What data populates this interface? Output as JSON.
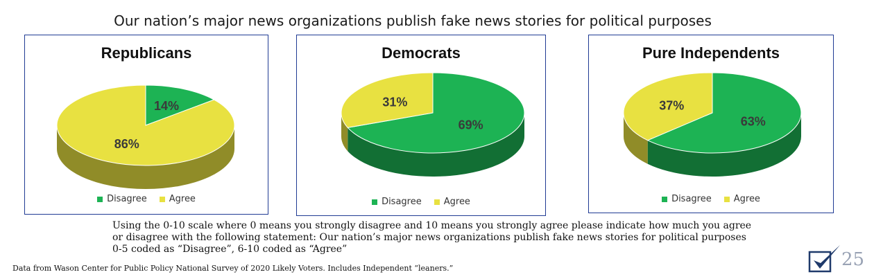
{
  "title": "Our nation’s major news organizations publish fake news stories for political purposes",
  "colors": {
    "disagree": "#1db354",
    "agree": "#e8e141",
    "border": "#1f3a93"
  },
  "chart_data": [
    {
      "type": "pie",
      "title": "Republicans",
      "categories": [
        "Disagree",
        "Agree"
      ],
      "values": [
        14,
        86
      ],
      "value_labels": [
        "14%",
        "86%"
      ],
      "legend": {
        "position": "bottom",
        "entries": [
          "Disagree",
          "Agree"
        ]
      }
    },
    {
      "type": "pie",
      "title": "Democrats",
      "categories": [
        "Disagree",
        "Agree"
      ],
      "values": [
        69,
        31
      ],
      "value_labels": [
        "69%",
        "31%"
      ],
      "legend": {
        "position": "bottom",
        "entries": [
          "Disagree",
          "Agree"
        ]
      }
    },
    {
      "type": "pie",
      "title": "Pure Independents",
      "categories": [
        "Disagree",
        "Agree"
      ],
      "values": [
        63,
        37
      ],
      "value_labels": [
        "63%",
        "37%"
      ],
      "legend": {
        "position": "bottom",
        "entries": [
          "Disagree",
          "Agree"
        ]
      }
    }
  ],
  "question": {
    "line1": "Using the 0-10 scale where 0 means you strongly disagree and 10 means you strongly agree please indicate how much you agree",
    "line2": "or disagree with the following statement: Our nation’s major news organizations publish fake news stories for political purposes",
    "line3": "0-5 coded as “Disagree”, 6-10 coded as “Agree”"
  },
  "source": "Data from Wason Center for Public Policy National Survey of 2020 Likely Voters. Includes Independent “leaners.”",
  "page_number": "25"
}
